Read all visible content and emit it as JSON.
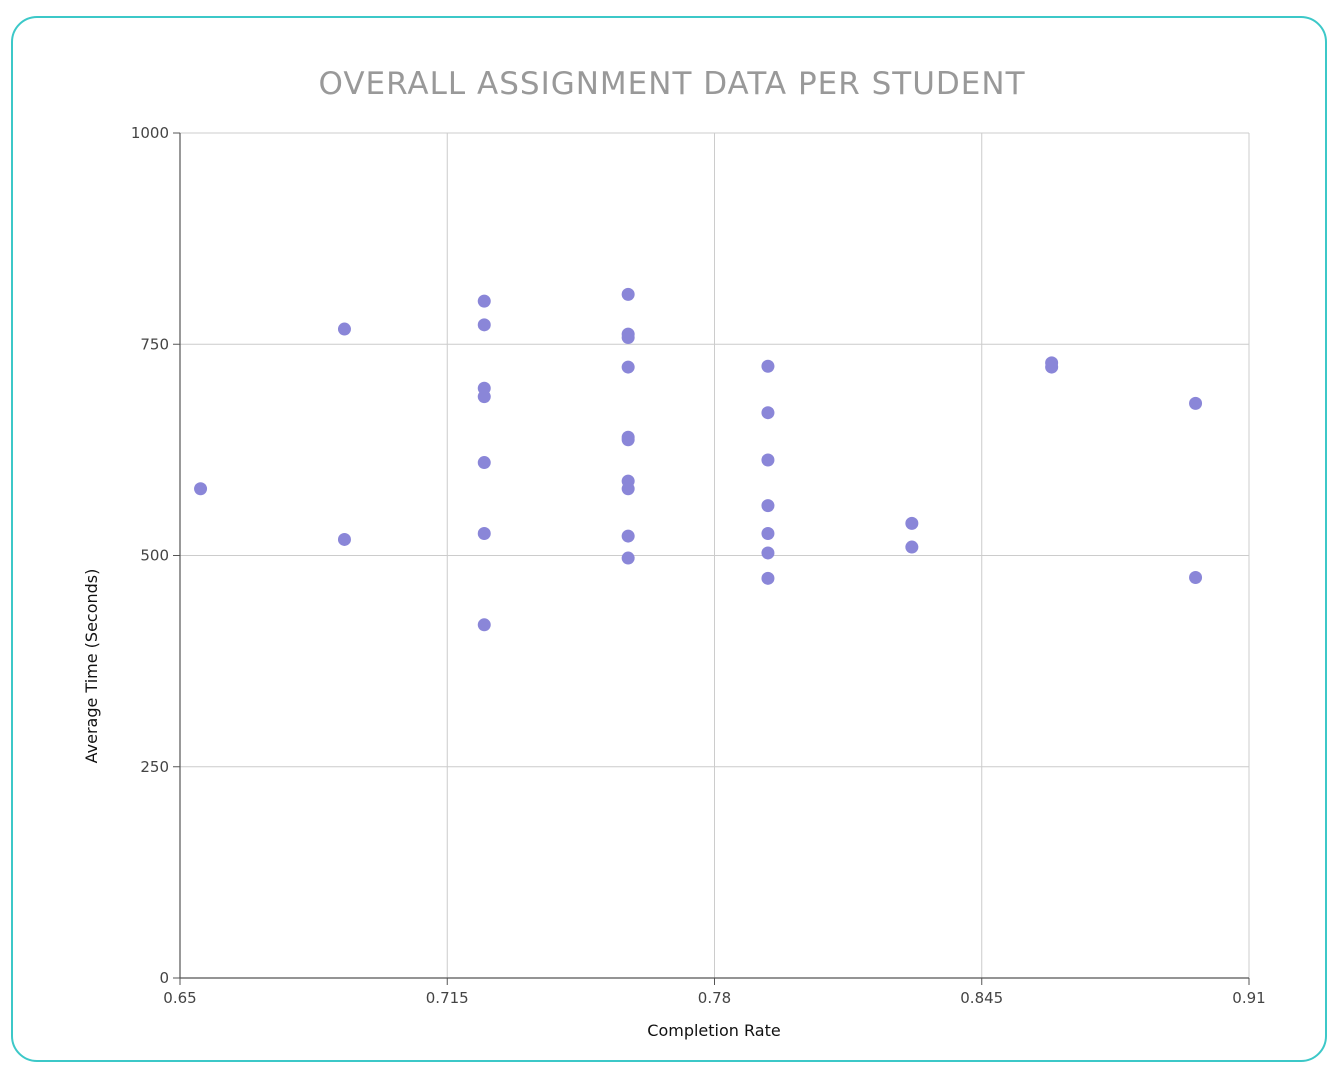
{
  "chart_data": {
    "type": "scatter",
    "title": "OVERALL ASSIGNMENT DATA PER STUDENT",
    "xlabel": "Completion Rate",
    "ylabel": "Average Time (Seconds)",
    "xlim": [
      0.65,
      0.91
    ],
    "ylim": [
      0,
      1000
    ],
    "xticks": [
      "0.65",
      "0.715",
      "0.78",
      "0.845",
      "0.91"
    ],
    "yticks": [
      "0",
      "250",
      "500",
      "750",
      "1000"
    ],
    "grid": true,
    "point_color": "#8a86d8",
    "points": [
      {
        "x": 0.655,
        "y": 579
      },
      {
        "x": 0.69,
        "y": 768
      },
      {
        "x": 0.69,
        "y": 519
      },
      {
        "x": 0.724,
        "y": 801
      },
      {
        "x": 0.724,
        "y": 773
      },
      {
        "x": 0.724,
        "y": 698
      },
      {
        "x": 0.724,
        "y": 688
      },
      {
        "x": 0.724,
        "y": 610
      },
      {
        "x": 0.724,
        "y": 526
      },
      {
        "x": 0.724,
        "y": 418
      },
      {
        "x": 0.759,
        "y": 809
      },
      {
        "x": 0.759,
        "y": 762
      },
      {
        "x": 0.759,
        "y": 758
      },
      {
        "x": 0.759,
        "y": 723
      },
      {
        "x": 0.759,
        "y": 640
      },
      {
        "x": 0.759,
        "y": 637
      },
      {
        "x": 0.759,
        "y": 588
      },
      {
        "x": 0.759,
        "y": 579
      },
      {
        "x": 0.759,
        "y": 523
      },
      {
        "x": 0.759,
        "y": 497
      },
      {
        "x": 0.793,
        "y": 724
      },
      {
        "x": 0.793,
        "y": 669
      },
      {
        "x": 0.793,
        "y": 613
      },
      {
        "x": 0.793,
        "y": 559
      },
      {
        "x": 0.793,
        "y": 526
      },
      {
        "x": 0.793,
        "y": 503
      },
      {
        "x": 0.793,
        "y": 473
      },
      {
        "x": 0.828,
        "y": 538
      },
      {
        "x": 0.828,
        "y": 510
      },
      {
        "x": 0.862,
        "y": 728
      },
      {
        "x": 0.862,
        "y": 723
      },
      {
        "x": 0.897,
        "y": 680
      },
      {
        "x": 0.897,
        "y": 474
      }
    ]
  }
}
